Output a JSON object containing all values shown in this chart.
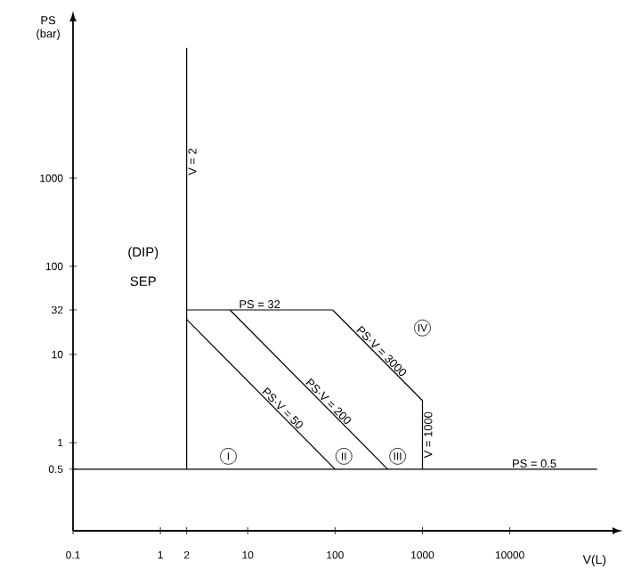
{
  "chart_data": {
    "type": "line",
    "xlabel": "V(L)",
    "ylabel": "PS (bar)",
    "log": "xy",
    "grid": false,
    "marker": "none",
    "line_style": "solid",
    "xlim": [
      0.1,
      150000
    ],
    "ylim": [
      0.1,
      60000
    ],
    "xticks": [
      0.1,
      1,
      2,
      10,
      100,
      1000,
      10000
    ],
    "yticks": [
      0.5,
      1,
      10,
      32,
      100,
      1000
    ],
    "series": [
      {
        "name": "V = 2",
        "color": "#000000",
        "x": [
          2,
          2
        ],
        "values": [
          0.5,
          30000
        ]
      },
      {
        "name": "PS = 32",
        "color": "#000000",
        "x": [
          2,
          93.75
        ],
        "values": [
          32,
          32
        ]
      },
      {
        "name": "PS·V = 50",
        "color": "#000000",
        "x": [
          2,
          100
        ],
        "values": [
          25,
          0.5
        ]
      },
      {
        "name": "PS·V = 200",
        "color": "#000000",
        "x": [
          6.25,
          400
        ],
        "values": [
          32,
          0.5
        ]
      },
      {
        "name": "PS·V = 3000",
        "color": "#000000",
        "x": [
          93.75,
          1000
        ],
        "values": [
          32,
          3
        ]
      },
      {
        "name": "V = 1000",
        "color": "#000000",
        "x": [
          1000,
          1000
        ],
        "values": [
          0.5,
          3
        ]
      },
      {
        "name": "PS = 0.5",
        "color": "#000000",
        "x": [
          0.1,
          100000
        ],
        "values": [
          0.5,
          0.5
        ]
      }
    ],
    "annotations": [
      "(DIP)",
      "SEP",
      {
        "text": "I",
        "x": 6,
        "y": 0.7
      },
      {
        "text": "II",
        "x": 126,
        "y": 0.7
      },
      {
        "text": "III",
        "x": 520,
        "y": 0.7
      },
      {
        "text": "IV",
        "x": 1000,
        "y": 20
      }
    ]
  }
}
